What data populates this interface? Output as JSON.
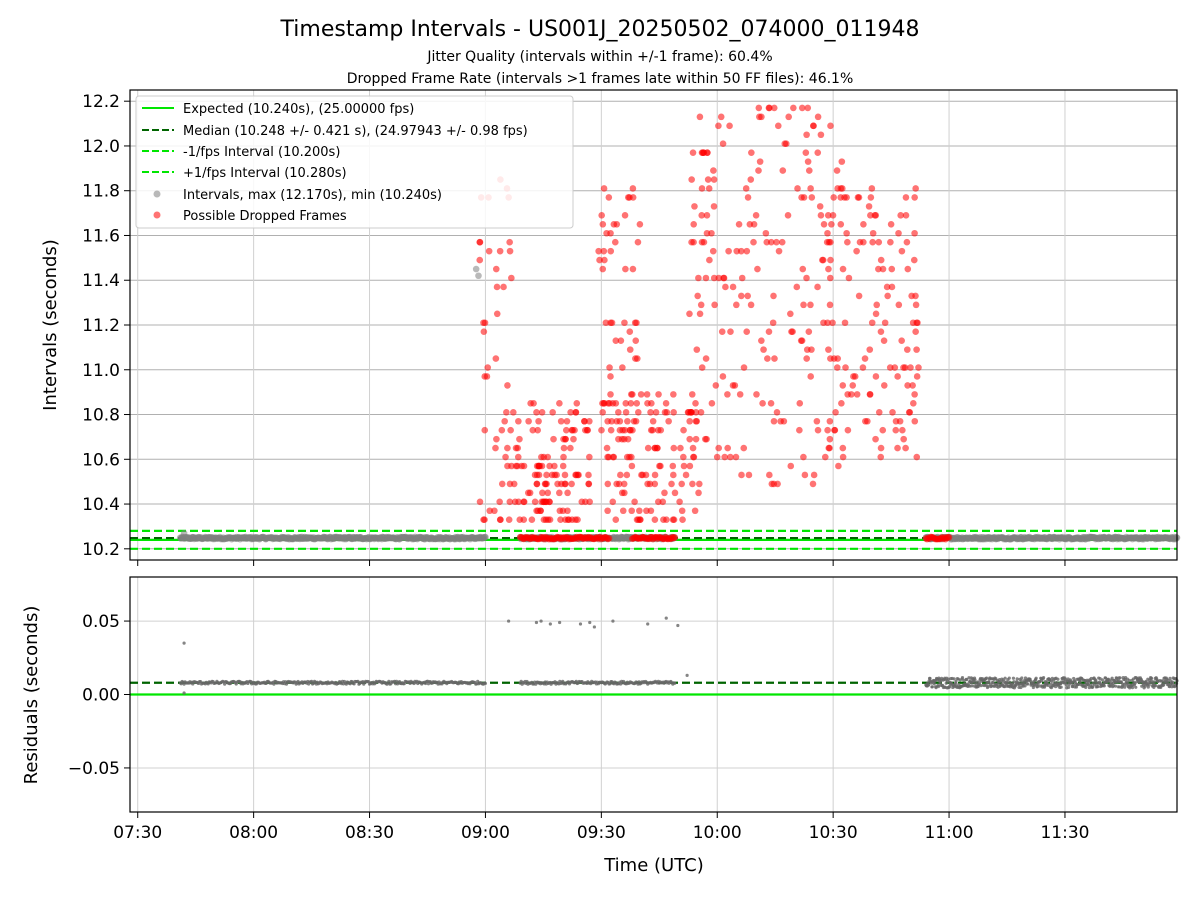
{
  "header": {
    "title": "Timestamp Intervals - US001J_20250502_074000_011948",
    "subtitle1": "Jitter Quality (intervals within +/-1 frame): 60.4%",
    "subtitle2": "Dropped Frame Rate (intervals >1 frames late within 50 FF files): 46.1%"
  },
  "chart_data": [
    {
      "type": "scatter",
      "panel": "intervals",
      "ylabel": "Intervals (seconds)",
      "ylim": [
        10.15,
        12.25
      ],
      "xlim": [
        "07:28",
        "11:59"
      ],
      "yticks": [
        "10.2",
        "10.4",
        "10.6",
        "10.8",
        "11.0",
        "11.2",
        "11.4",
        "11.6",
        "11.8",
        "12.0",
        "12.2"
      ],
      "ytick_values": [
        10.2,
        10.4,
        10.6,
        10.8,
        11.0,
        11.2,
        11.4,
        11.6,
        11.8,
        12.0,
        12.2
      ],
      "grid": true,
      "legend_position": "top-left",
      "colors": {
        "expected": "#00e600",
        "median": "#006400",
        "band": "#00e600",
        "intervals": "#808080",
        "dropped": "#ff0000"
      },
      "reference_lines": [
        {
          "name": "Expected (10.240s), (25.00000 fps)",
          "y": 10.24,
          "style": "solid"
        },
        {
          "name": "Median (10.248 +/- 0.421 s), (24.97943 +/- 0.98 fps)",
          "y": 10.248,
          "style": "dashed"
        },
        {
          "name": "-1/fps Interval (10.200s)",
          "y": 10.2,
          "style": "dashed"
        },
        {
          "name": "+1/fps Interval (10.280s)",
          "y": 10.28,
          "style": "dashed"
        }
      ],
      "series": [
        {
          "name": "Intervals, max (12.170s), min (10.240s)",
          "baseline_segments": [
            [
              "07:41",
              "09:00"
            ],
            [
              "09:09",
              "09:49"
            ],
            [
              "10:54",
              "11:59"
            ]
          ],
          "baseline_y": 10.248,
          "outliers": [
            [
              7.7,
              10.27
            ],
            [
              8.96,
              11.45
            ],
            [
              8.97,
              11.42
            ]
          ]
        },
        {
          "name": "Possible Dropped Frames",
          "band_segments": [
            [
              "09:09",
              "09:32"
            ],
            [
              "09:38",
              "09:49"
            ],
            [
              "10:54",
              "11:00"
            ]
          ],
          "band_y": 10.248,
          "clusters": [
            {
              "x": [
                8.97,
                9.12
              ],
              "y": [
                10.3,
                11.9
              ]
            },
            {
              "x": [
                9.1,
                9.45
              ],
              "y": [
                10.3,
                10.85
              ]
            },
            {
              "x": [
                9.2,
                9.28
              ],
              "y": [
                10.3,
                10.6
              ]
            },
            {
              "x": [
                9.48,
                9.67
              ],
              "y": [
                10.7,
                11.8
              ]
            },
            {
              "x": [
                9.52,
                9.92
              ],
              "y": [
                10.3,
                10.9
              ]
            },
            {
              "x": [
                9.88,
                10.55
              ],
              "y": [
                10.45,
                12.2
              ]
            },
            {
              "x": [
                10.45,
                10.87
              ],
              "y": [
                10.6,
                11.8
              ]
            }
          ]
        }
      ]
    },
    {
      "type": "scatter",
      "panel": "residuals",
      "ylabel": "Residuals (seconds)",
      "xlabel": "Time (UTC)",
      "ylim": [
        -0.08,
        0.08
      ],
      "yticks": [
        "−0.05",
        "0.00",
        "0.05"
      ],
      "ytick_values": [
        -0.05,
        0.0,
        0.05
      ],
      "xticks": [
        "07:30",
        "08:00",
        "08:30",
        "09:00",
        "09:30",
        "10:00",
        "10:30",
        "11:00",
        "11:30"
      ],
      "reference_lines": [
        {
          "y": 0.0,
          "style": "solid"
        },
        {
          "y": 0.008,
          "style": "dashed"
        }
      ],
      "series": [
        {
          "name": "residuals",
          "baseline_y": 0.008,
          "outliers": [
            [
              7.7,
              0.035
            ],
            [
              7.7,
              0.001
            ],
            [
              9.1,
              0.05
            ],
            [
              9.22,
              0.049
            ],
            [
              9.24,
              0.05
            ],
            [
              9.28,
              0.048
            ],
            [
              9.32,
              0.049
            ],
            [
              9.41,
              0.048
            ],
            [
              9.45,
              0.049
            ],
            [
              9.47,
              0.046
            ],
            [
              9.55,
              0.05
            ],
            [
              9.7,
              0.048
            ],
            [
              9.78,
              0.052
            ],
            [
              9.83,
              0.047
            ],
            [
              9.87,
              0.013
            ]
          ]
        }
      ]
    }
  ]
}
